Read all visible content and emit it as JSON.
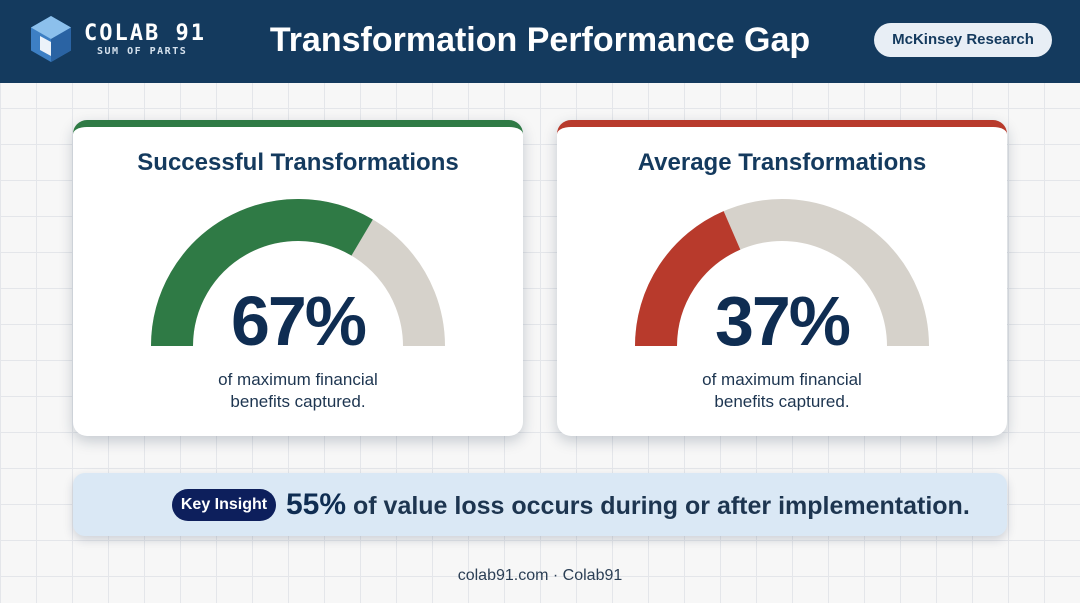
{
  "header": {
    "brand": "COLAB 91",
    "tagline": "SUM OF PARTS",
    "title": "Transformation Performance Gap",
    "source_badge": "McKinsey Research",
    "logo_icon": "hexagon-logo-icon"
  },
  "gauges": [
    {
      "title": "Successful Transformations",
      "value_label": "67%",
      "fraction": 0.67,
      "caption_line1": "of maximum financial",
      "caption_line2": "benefits captured.",
      "fill_color": "#2f7a45",
      "track_color": "#d6d2cb"
    },
    {
      "title": "Average Transformations",
      "value_label": "37%",
      "fraction": 0.37,
      "caption_line1": "of maximum financial",
      "caption_line2": "benefits captured.",
      "fill_color": "#b83a2c",
      "track_color": "#d6d2cb"
    }
  ],
  "insight": {
    "tag": "Key Insight",
    "stat": "55%",
    "text": " of value loss occurs during or after implementation."
  },
  "footer": {
    "text": "colab91.com · Colab91"
  }
}
